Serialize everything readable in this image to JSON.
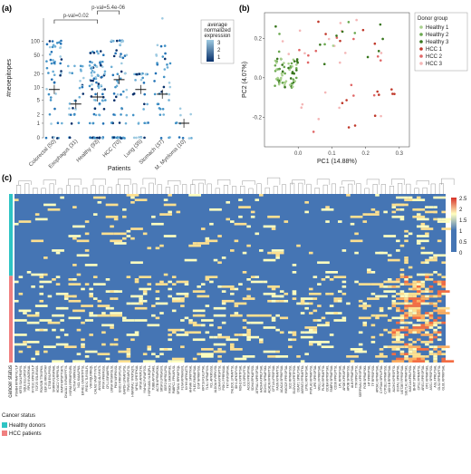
{
  "panels": {
    "a": "(a)",
    "b": "(b)",
    "c": "(c)"
  },
  "chart_data": [
    {
      "type": "scatter",
      "panel": "a",
      "xlabel": "Patients",
      "ylabel": "#neoepitopes",
      "y_scale": "pseudo-log",
      "y_ticks": [
        "0",
        "1",
        "2",
        "5",
        "10",
        "20",
        "50",
        "100"
      ],
      "y_tick_values": [
        0,
        1,
        2,
        5,
        10,
        20,
        50,
        100
      ],
      "categories": [
        "Colorectal (50)",
        "Esophagus (31)",
        "Healthy (93)",
        "HCC (70)",
        "Lung (35)",
        "Stomach (37)",
        "M. Myeloma (10)"
      ],
      "counts": [
        50,
        31,
        93,
        70,
        35,
        37,
        10
      ],
      "medians": [
        9,
        4,
        6,
        15,
        9,
        7,
        1
      ],
      "max_values": [
        100,
        30,
        60,
        100,
        20,
        300,
        3
      ],
      "annotations": [
        "p-val=0.02",
        "p-val=5.4e-06"
      ],
      "legend": {
        "title": "average normalized expression",
        "ticks": [
          "3",
          "2",
          "1"
        ]
      }
    },
    {
      "type": "scatter",
      "panel": "b",
      "xlabel": "PC1 (14.88%)",
      "ylabel": "PC2 (4.07%)",
      "xlim": [
        -0.1,
        0.33
      ],
      "ylim": [
        -0.35,
        0.33
      ],
      "x_ticks": [
        "0.0",
        "0.1",
        "0.2",
        "0.3"
      ],
      "y_ticks": [
        "-0.2",
        "0.0",
        "0.2"
      ],
      "legend": {
        "title": "Donor group",
        "entries": [
          {
            "name": "Healthy 1",
            "color": "#a8d08d"
          },
          {
            "name": "Healthy 2",
            "color": "#6aa84f"
          },
          {
            "name": "Healthy 3",
            "color": "#38761d"
          },
          {
            "name": "HCC 1",
            "color": "#c0392b"
          },
          {
            "name": "HCC 2",
            "color": "#e06666"
          },
          {
            "name": "HCC 3",
            "color": "#f4b6b6"
          }
        ]
      }
    },
    {
      "type": "heatmap",
      "panel": "c",
      "colorscale": {
        "min": 0,
        "max": 2.5,
        "ticks": [
          "2.5",
          "2",
          "1.5",
          "1",
          "0.5",
          "0"
        ],
        "colors": [
          "#4575b4",
          "#ffffbf",
          "#d73027"
        ]
      },
      "annotation_title": "Cancer status",
      "groups": [
        {
          "name": "Healthy donors",
          "color": "#2ec4c4"
        },
        {
          "name": "HCC patients",
          "color": "#f08080"
        }
      ],
      "row_axis_label": "cancer status",
      "column_labels": [
        "PSMB4 RPRAPVLYLP",
        "KRT8 SLKLPRAPVL",
        "SQLE ELLGRSTSL",
        "RPL8 KVAGRKAL",
        "MYO1C KPRSLFLP",
        "TCF25 SSLIRASIL",
        "POLR2B TTKSPKIL",
        "EEF1G RRKLPTAV",
        "CTSB EVLPRISL",
        "SNRPA RLRNPAAL",
        "HDAC2 VVRPRLSL",
        "MAP4 MPSPTSKTL",
        "DNAJA1 SVRAKFPTVL",
        "HSPA8 RPRMPGNRL",
        "ACTN4 VIRPKKSL",
        "NCL KIAALPNIL",
        "EIF4G1 GMVRTPTSL",
        "PRDX1 TLRSSLFL",
        "VIM RQLRRKQL",
        "CALM2 VASPTYNTL",
        "ANXA2 ALIVKKTL",
        "PPIA VPKPASSL",
        "CFL1 EIRAKPRL",
        "LMNA VRSKRSLSL",
        "PKM NIRPKNSL",
        "ENO1 RRKSPLVSL",
        "GAPDH LPKAPLPSL",
        "TPM3 FPRAPLTSL",
        "HNRNPA1 YPKPSQTL",
        "NPM1 SPRTPKAL",
        "RPS6 APKPLTKL",
        "YWHAZ FVRAPTGL",
        "HSP90AB1 NLRQPLL",
        "TUBB APVPSAKL",
        "ACTB KPRMPGKL",
        "SRSF3 LPRSASVL",
        "EEF2 MPRGLPSL",
        "RACK1 SMKSPNKL",
        "PABPC1 FPKAPLSL",
        "SPTAN1 RPRKPTQL",
        "FLNA KPRAASVL",
        "MYH9 AFRKATTL",
        "AHNAK SPKPTKAL",
        "PLEC RMRAPSAL",
        "DSP NPRKPSSL",
        "KRT18 RLKLPTAL",
        "TLN1 SPRAPSVL",
        "VCL APKRSSSL",
        "ALDOA HVRPKVSL",
        "LDHA KPRSPTSL",
        "PGK1 FPRPASAL",
        "TKT KVRSPNAL",
        "TALDO1 LPRAPTSL",
        "IDH1 APKSPVSL",
        "MDH2 KPRTPSAL",
        "CS SPRLPTSL",
        "ACO2 FPRSPVAL",
        "SDHA RPKAPSSL",
        "ATP5A1 MPRSPTAL",
        "HADHA KPRLPSAL",
        "ECHS1 SPRAPSKL",
        "ACADM FPRKPTSL",
        "CPT1A LPRSPSAL",
        "FASN KPRAPTSL",
        "ACACA SPRKPSAL",
        "HMGCR FPRSPTAL",
        "SCD RPRAPSSL",
        "ELOVL6 KPRTPSSL",
        "DGAT1 SPRLPSAL",
        "AGPAT2 FPRAPTKL",
        "LPIN1 RPKSPSAL",
        "PNPLA2 KPRAPVSL",
        "LIPE SPRSPTAL",
        "MGLL FPRKPSAL",
        "PLIN2 RPRAPTSL",
        "CIDEA KPRSPSKL",
        "FABP4 SPRAPSAL",
        "CD36 FPRLPTSL",
        "LPL RPRSPSAL",
        "APOE KPRAPTAL",
        "APOB SPRKPSSL",
        "ALB FPRAPSAL",
        "TTR RPRLPTSL",
        "SERPINA1 KPRSPTAL",
        "FGB SPRAPSKL",
        "HP FPRKPTAL",
        "TF RPRSPSSL",
        "APOA1 KPRAPSAL",
        "CYP3A4 SPRLPTAL",
        "CYP2E1 FPRAPSSL",
        "ADH1B RPRKPSAL",
        "ALDH2 KPRSPTSL",
        "GSTA1 SPRAPTAL",
        "UGT2B7 FPRSPSAL",
        "SULT1A1 RPRAPSKL",
        "MAT1A KPRLPSSL",
        "BHMT SPRKPTAL",
        "CPS1 FPRAPTSL",
        "ARG1 RPRSPTAL",
        "OTC KPRAPSKL",
        "ASS1 SPRSPSSL",
        "ASL FPRLPSAL",
        "GLS2 RPRAPTSL",
        "GLUL KPRKPSAL"
      ]
    }
  ]
}
